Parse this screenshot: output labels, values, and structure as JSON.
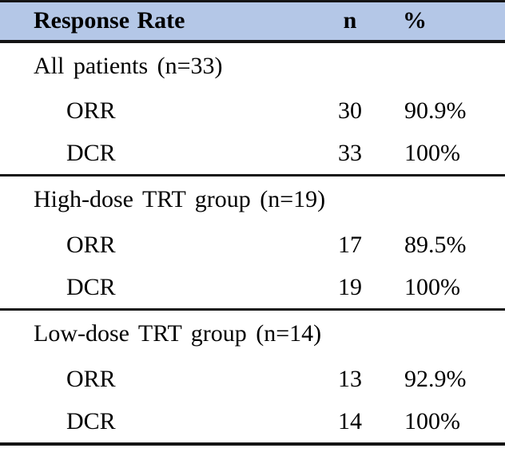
{
  "colors": {
    "header_bg": "#b4c7e7",
    "rule": "#141414",
    "text": "#000000",
    "page_bg": "#ffffff"
  },
  "table": {
    "header": {
      "response_rate": "Response Rate",
      "n": "n",
      "pct": "%"
    },
    "sections": [
      {
        "group": "All patients (n=33)",
        "rows": [
          {
            "label": "ORR",
            "n": "30",
            "pct": "90.9%"
          },
          {
            "label": "DCR",
            "n": "33",
            "pct": "100%"
          }
        ]
      },
      {
        "group": "High-dose TRT group (n=19)",
        "rows": [
          {
            "label": "ORR",
            "n": "17",
            "pct": "89.5%"
          },
          {
            "label": "DCR",
            "n": "19",
            "pct": "100%"
          }
        ]
      },
      {
        "group": "Low-dose TRT group (n=14)",
        "rows": [
          {
            "label": "ORR",
            "n": "13",
            "pct": "92.9%"
          },
          {
            "label": "DCR",
            "n": "14",
            "pct": "100%"
          }
        ]
      }
    ]
  }
}
